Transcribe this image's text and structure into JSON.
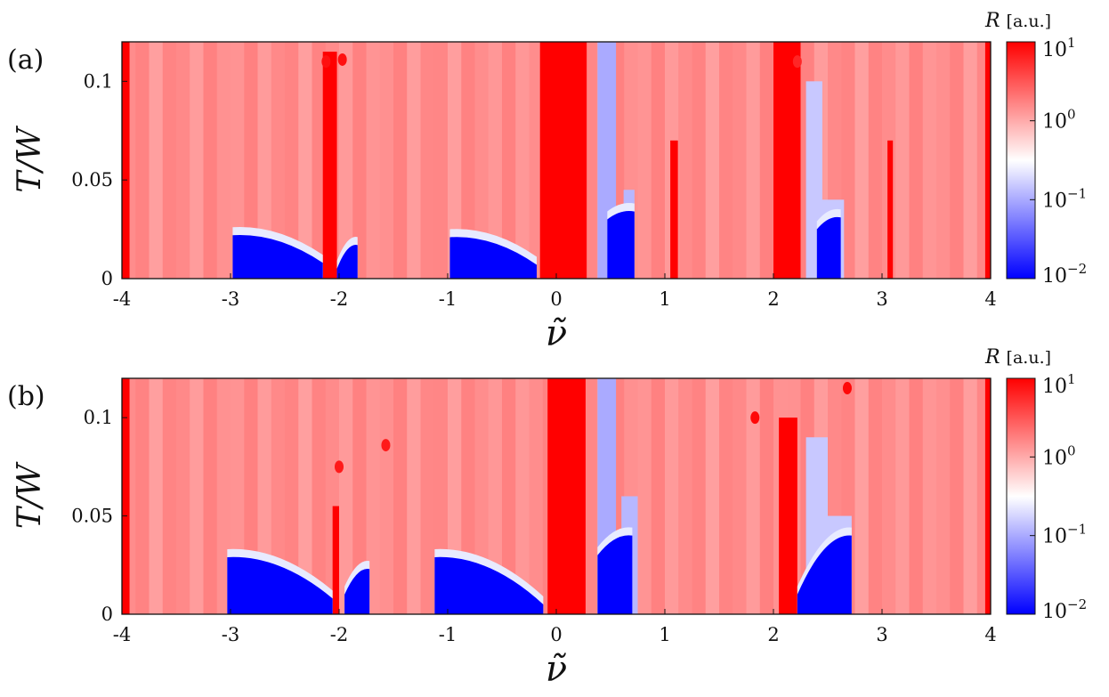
{
  "chart_data": [
    {
      "type": "heatmap",
      "panel_label": "(a)",
      "xlabel": "ν̃",
      "ylabel": "T/W",
      "xlim": [
        -4,
        4
      ],
      "ylim": [
        0,
        0.12
      ],
      "xticks": [
        "-4",
        "-3",
        "-2",
        "-1",
        "0",
        "1",
        "2",
        "3",
        "4"
      ],
      "yticks": [
        "0",
        "0.05",
        "0.1"
      ],
      "colorbar": {
        "title_symbol": "R",
        "title_unit": "[a.u.]",
        "scale": "log",
        "range": [
          0.01,
          10
        ],
        "ticks": [
          {
            "base": "10",
            "exp": "1",
            "value": 10
          },
          {
            "base": "10",
            "exp": "0",
            "value": 1
          },
          {
            "base": "10",
            "exp": "−1",
            "value": 0.1
          },
          {
            "base": "10",
            "exp": "−2",
            "value": 0.01
          }
        ],
        "colors": [
          "#0000ff",
          "#ffffff",
          "#ff0000"
        ]
      },
      "background_value": 1.5,
      "high_bands": [
        {
          "x0": -4.0,
          "x1": -3.93,
          "t_top": 0.12,
          "value": 10
        },
        {
          "x0": -2.15,
          "x1": -2.02,
          "t_top": 0.115,
          "value": 10
        },
        {
          "x0": -0.15,
          "x1": 0.28,
          "t_top": 0.12,
          "value": 10
        },
        {
          "x0": 1.05,
          "x1": 1.12,
          "t_top": 0.07,
          "value": 10
        },
        {
          "x0": 2.0,
          "x1": 2.25,
          "t_top": 0.12,
          "value": 10
        },
        {
          "x0": 3.05,
          "x1": 3.1,
          "t_top": 0.07,
          "value": 10
        },
        {
          "x0": 3.95,
          "x1": 4.0,
          "t_top": 0.12,
          "value": 10
        }
      ],
      "low_domes": [
        {
          "x0": -2.98,
          "x1": -2.15,
          "t_left": 0.022,
          "t_right": 0.008,
          "value": 0.01
        },
        {
          "x0": -2.02,
          "x1": -1.83,
          "t_left": 0.005,
          "t_right": 0.017,
          "value": 0.01
        },
        {
          "x0": -0.98,
          "x1": -0.18,
          "t_left": 0.021,
          "t_right": 0.007,
          "value": 0.01
        },
        {
          "x0": 0.47,
          "x1": 0.72,
          "t_left": 0.03,
          "t_right": 0.034,
          "value": 0.01
        },
        {
          "x0": 2.4,
          "x1": 2.62,
          "t_left": 0.025,
          "t_right": 0.031,
          "value": 0.01
        }
      ],
      "low_bands": [
        {
          "x0": 0.38,
          "x1": 0.55,
          "t_top": 0.12,
          "value": 0.1
        },
        {
          "x0": 0.62,
          "x1": 0.72,
          "t_top": 0.045,
          "value": 0.12
        },
        {
          "x0": 2.3,
          "x1": 2.45,
          "t_top": 0.1,
          "value": 0.15
        },
        {
          "x0": 2.42,
          "x1": 2.65,
          "t_top": 0.04,
          "value": 0.15
        }
      ],
      "hot_dots": [
        {
          "x": -2.12,
          "t": 0.11,
          "value": 8
        },
        {
          "x": -1.97,
          "t": 0.111,
          "value": 8
        },
        {
          "x": 2.22,
          "t": 0.11,
          "value": 6
        }
      ]
    },
    {
      "type": "heatmap",
      "panel_label": "(b)",
      "xlabel": "ν̃",
      "ylabel": "T/W",
      "xlim": [
        -4,
        4
      ],
      "ylim": [
        0,
        0.12
      ],
      "xticks": [
        "-4",
        "-3",
        "-2",
        "-1",
        "0",
        "1",
        "2",
        "3",
        "4"
      ],
      "yticks": [
        "0",
        "0.05",
        "0.1"
      ],
      "colorbar": {
        "title_symbol": "R",
        "title_unit": "[a.u.]",
        "scale": "log",
        "range": [
          0.01,
          10
        ],
        "ticks": [
          {
            "base": "10",
            "exp": "1",
            "value": 10
          },
          {
            "base": "10",
            "exp": "0",
            "value": 1
          },
          {
            "base": "10",
            "exp": "−1",
            "value": 0.1
          },
          {
            "base": "10",
            "exp": "−2",
            "value": 0.01
          }
        ],
        "colors": [
          "#0000ff",
          "#ffffff",
          "#ff0000"
        ]
      },
      "background_value": 1.5,
      "high_bands": [
        {
          "x0": -4.0,
          "x1": -3.93,
          "t_top": 0.12,
          "value": 10
        },
        {
          "x0": -2.06,
          "x1": -2.0,
          "t_top": 0.055,
          "value": 10
        },
        {
          "x0": -0.08,
          "x1": 0.27,
          "t_top": 0.12,
          "value": 10
        },
        {
          "x0": 2.05,
          "x1": 2.22,
          "t_top": 0.1,
          "value": 10
        },
        {
          "x0": 3.95,
          "x1": 4.0,
          "t_top": 0.12,
          "value": 10
        }
      ],
      "low_domes": [
        {
          "x0": -3.03,
          "x1": -2.06,
          "t_left": 0.029,
          "t_right": 0.008,
          "value": 0.01
        },
        {
          "x0": -1.95,
          "x1": -1.72,
          "t_left": 0.01,
          "t_right": 0.023,
          "value": 0.01
        },
        {
          "x0": -1.12,
          "x1": -0.12,
          "t_left": 0.029,
          "t_right": 0.005,
          "value": 0.01
        },
        {
          "x0": 0.38,
          "x1": 0.7,
          "t_left": 0.03,
          "t_right": 0.04,
          "value": 0.01
        },
        {
          "x0": 2.22,
          "x1": 2.72,
          "t_left": 0.01,
          "t_right": 0.04,
          "value": 0.01
        }
      ],
      "low_bands": [
        {
          "x0": 0.38,
          "x1": 0.55,
          "t_top": 0.12,
          "value": 0.1
        },
        {
          "x0": 0.6,
          "x1": 0.75,
          "t_top": 0.06,
          "value": 0.12
        },
        {
          "x0": 2.3,
          "x1": 2.5,
          "t_top": 0.09,
          "value": 0.15
        },
        {
          "x0": 2.45,
          "x1": 2.72,
          "t_top": 0.05,
          "value": 0.15
        }
      ],
      "hot_dots": [
        {
          "x": -2.0,
          "t": 0.075,
          "value": 7
        },
        {
          "x": -1.57,
          "t": 0.086,
          "value": 7
        },
        {
          "x": 1.83,
          "t": 0.1,
          "value": 9
        },
        {
          "x": 2.68,
          "t": 0.115,
          "value": 9
        }
      ]
    }
  ]
}
